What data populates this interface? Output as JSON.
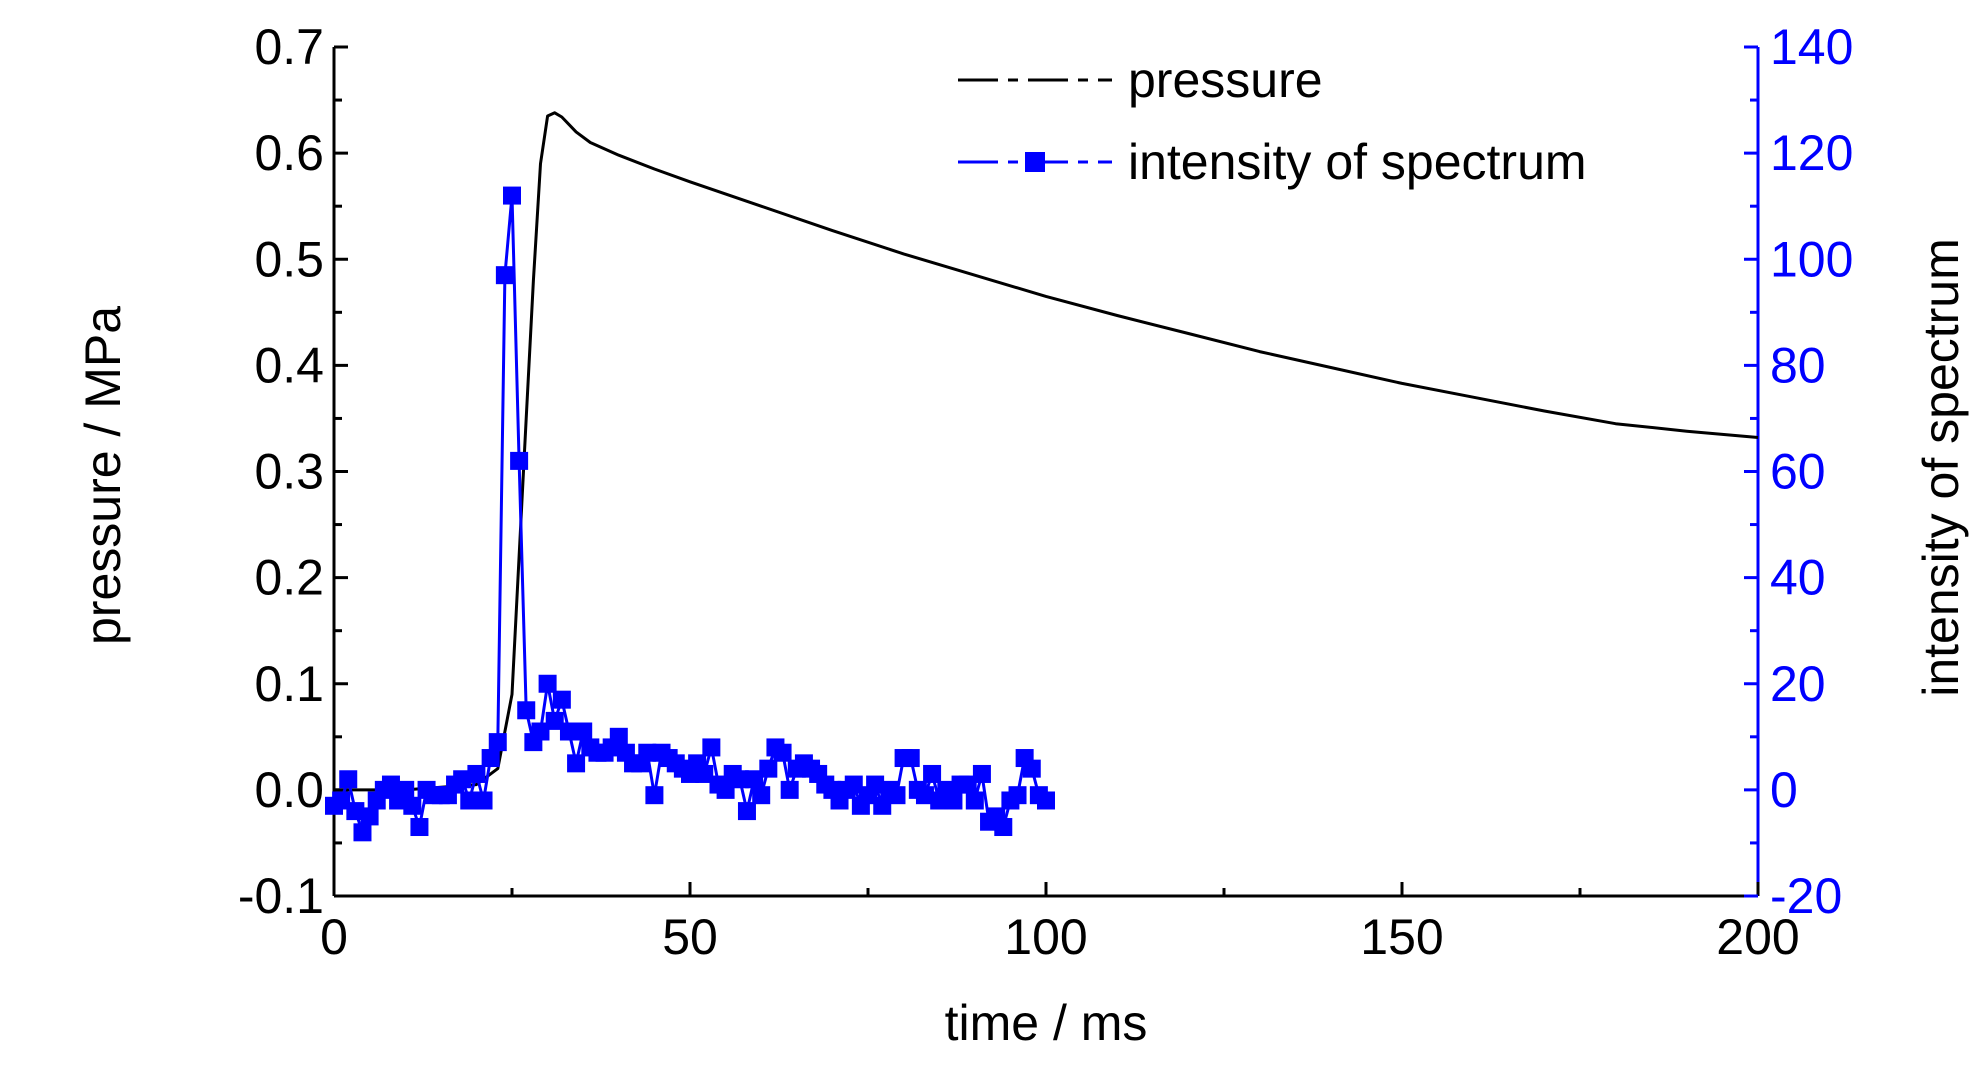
{
  "chart_data": {
    "type": "line",
    "title": "",
    "xlabel": "time / ms",
    "ylabel": "pressure / MPa",
    "y2label": "intensity of spectrum",
    "xlim": [
      0,
      200
    ],
    "ylim": [
      -0.1,
      0.7
    ],
    "y2lim": [
      -20,
      140
    ],
    "x_ticks": [
      0,
      50,
      100,
      150,
      200
    ],
    "y_ticks": [
      "-0.1",
      "0.0",
      "0.1",
      "0.2",
      "0.3",
      "0.4",
      "0.5",
      "0.6",
      "0.7"
    ],
    "y2_ticks": [
      "-20",
      "0",
      "20",
      "40",
      "60",
      "80",
      "100",
      "120",
      "140"
    ],
    "grid": false,
    "legend_position": "top-center",
    "colors": {
      "pressure": "#000000",
      "intensity": "#0000ff"
    },
    "series": [
      {
        "name": "pressure",
        "axis": "left",
        "style": "line",
        "x": [
          0,
          10,
          20,
          23,
          25,
          27,
          28,
          29,
          30,
          31,
          32,
          34,
          36,
          40,
          45,
          50,
          60,
          70,
          80,
          90,
          100,
          110,
          120,
          130,
          140,
          150,
          160,
          170,
          180,
          190,
          200
        ],
        "values": [
          0.0,
          0.0,
          0.005,
          0.02,
          0.09,
          0.35,
          0.48,
          0.59,
          0.635,
          0.638,
          0.634,
          0.62,
          0.61,
          0.598,
          0.585,
          0.573,
          0.55,
          0.527,
          0.505,
          0.485,
          0.465,
          0.447,
          0.43,
          0.413,
          0.398,
          0.383,
          0.37,
          0.357,
          0.345,
          0.338,
          0.332
        ]
      },
      {
        "name": "intensity of spectrum",
        "axis": "right",
        "style": "line+markers",
        "x": [
          0,
          1,
          2,
          3,
          4,
          5,
          6,
          7,
          8,
          9,
          10,
          11,
          12,
          13,
          14,
          15,
          16,
          17,
          18,
          19,
          20,
          21,
          22,
          23,
          24,
          25,
          26,
          27,
          28,
          29,
          30,
          31,
          32,
          33,
          34,
          35,
          36,
          37,
          38,
          39,
          40,
          41,
          42,
          43,
          44,
          45,
          46,
          47,
          48,
          49,
          50,
          51,
          52,
          53,
          54,
          55,
          56,
          57,
          58,
          59,
          60,
          61,
          62,
          63,
          64,
          65,
          66,
          67,
          68,
          69,
          70,
          71,
          72,
          73,
          74,
          75,
          76,
          77,
          78,
          79,
          80,
          81,
          82,
          83,
          84,
          85,
          86,
          87,
          88,
          89,
          90,
          91,
          92,
          93,
          94,
          95,
          96,
          97,
          98,
          99,
          100
        ],
        "values": [
          -3,
          -2,
          2,
          -4,
          -8,
          -5,
          -2,
          0,
          1,
          -2,
          0,
          -3,
          -7,
          0,
          -1,
          -1,
          -1,
          1,
          2,
          -2,
          3,
          -2,
          6,
          9,
          97,
          112,
          62,
          15,
          9,
          11,
          20,
          13,
          17,
          11,
          5,
          11,
          8,
          7,
          7,
          8,
          10,
          7,
          5,
          5,
          7,
          -1,
          7,
          6,
          5,
          4,
          3,
          5,
          3,
          8,
          1,
          0,
          3,
          2,
          -4,
          2,
          -1,
          4,
          8,
          7,
          0,
          4,
          5,
          4,
          3,
          1,
          0,
          -2,
          0,
          1,
          -3,
          -1,
          1,
          -3,
          0,
          -1,
          6,
          6,
          0,
          -1,
          3,
          -2,
          0,
          -2,
          1,
          1,
          -2,
          3,
          -6,
          -5,
          -7,
          -2,
          -1,
          6,
          4,
          -1,
          -2
        ]
      }
    ]
  }
}
